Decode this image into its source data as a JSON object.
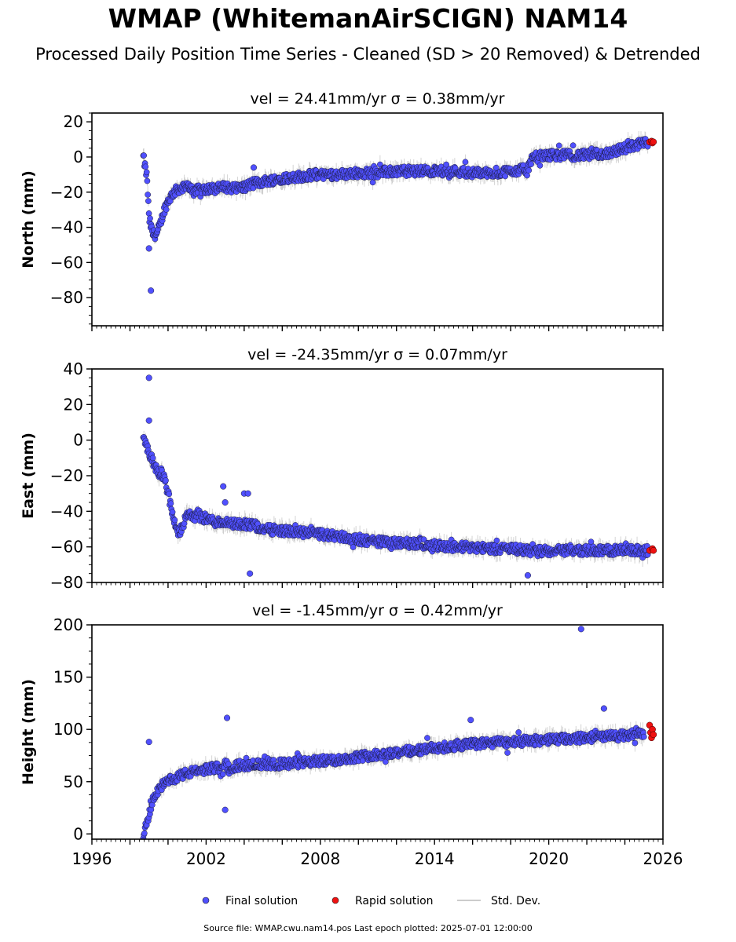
{
  "page": {
    "title": "WMAP (WhitemanAirSCIGN) NAM14",
    "subtitle": "Processed Daily Position Time Series - Cleaned (SD > 20 Removed) & Detrended",
    "footer": "Source file: WMAP.cwu.nam14.pos  Last epoch plotted: 2025-07-01 12:00:00"
  },
  "legend": {
    "final": "Final solution",
    "rapid": "Rapid solution",
    "std": "Std. Dev."
  },
  "colors": {
    "final": "#5050ff",
    "rapid": "#ee1111",
    "std": "#aaaaaa"
  },
  "chart_data": [
    {
      "type": "scatter",
      "title": "vel = 24.41mm/yr   σ = 0.38mm/yr",
      "ylabel": "North (mm)",
      "xlim": [
        1996,
        2026
      ],
      "ylim": [
        -96,
        25
      ],
      "yticks": [
        20,
        0,
        -20,
        -40,
        -60,
        -80
      ],
      "xticks": [],
      "outliers": [
        [
          1999.1,
          -76
        ],
        [
          1999.0,
          -52
        ],
        [
          2004.5,
          -6
        ]
      ],
      "rapid": [
        [
          2025.3,
          8.5
        ],
        [
          2025.4,
          9
        ],
        [
          2025.45,
          8
        ],
        [
          2025.5,
          8.6
        ]
      ],
      "series": [
        {
          "x": [
            1998.7,
            1998.9,
            1999.0,
            1999.2,
            1999.4,
            1999.6,
            1999.8,
            2000.0,
            2000.3,
            2000.6,
            2001.0,
            2001.5,
            2002.0,
            2002.5,
            2003.0,
            2003.5,
            2004.0,
            2004.5,
            2005.0,
            2005.5,
            2006.0,
            2007.0,
            2008.0,
            2009.0,
            2010.0,
            2011.0,
            2012.0,
            2013.0,
            2014.0,
            2015.0,
            2016.0,
            2017.0,
            2018.0,
            2018.9,
            2019.0,
            2019.3,
            2020.0,
            2021.0,
            2022.0,
            2023.0,
            2024.0,
            2024.6,
            2025.2
          ],
          "y": [
            0,
            -12,
            -35,
            -44,
            -44,
            -38,
            -30,
            -25,
            -20,
            -18,
            -17,
            -19,
            -18,
            -18,
            -17,
            -18,
            -17,
            -15,
            -14,
            -13,
            -12,
            -11,
            -10,
            -10,
            -9,
            -9,
            -8,
            -8,
            -8,
            -8,
            -9,
            -9,
            -8,
            -7,
            -3,
            0,
            1,
            1,
            1,
            2,
            5,
            7,
            8
          ]
        }
      ]
    },
    {
      "type": "scatter",
      "title": "vel = -24.35mm/yr   σ = 0.07mm/yr",
      "ylabel": "East (mm)",
      "xlim": [
        1996,
        2026
      ],
      "ylim": [
        -80,
        40
      ],
      "yticks": [
        40,
        20,
        0,
        -20,
        -40,
        -60,
        -80
      ],
      "xticks": [],
      "outliers": [
        [
          1999.0,
          35
        ],
        [
          1999.0,
          11
        ],
        [
          2002.9,
          -26
        ],
        [
          2003.0,
          -35
        ],
        [
          2004.0,
          -30
        ],
        [
          2004.2,
          -30
        ],
        [
          2004.3,
          -75
        ],
        [
          2018.9,
          -76
        ]
      ],
      "rapid": [
        [
          2025.3,
          -62
        ],
        [
          2025.45,
          -61
        ],
        [
          2025.5,
          -62
        ]
      ],
      "series": [
        {
          "x": [
            1998.7,
            1998.9,
            1999.1,
            1999.3,
            1999.5,
            1999.8,
            2000.0,
            2000.2,
            2000.4,
            2000.6,
            2001.0,
            2001.5,
            2002.0,
            2002.5,
            2003.0,
            2003.5,
            2004.0,
            2004.5,
            2005.0,
            2006.0,
            2007.0,
            2008.0,
            2009.0,
            2010.0,
            2011.0,
            2012.0,
            2013.0,
            2014.0,
            2015.0,
            2016.0,
            2017.0,
            2018.0,
            2018.9,
            2019.2,
            2020.0,
            2021.0,
            2022.0,
            2023.0,
            2024.0,
            2025.2
          ],
          "y": [
            0,
            -5,
            -10,
            -15,
            -18,
            -20,
            -30,
            -40,
            -50,
            -52,
            -42,
            -43,
            -44,
            -46,
            -46,
            -47,
            -47,
            -48,
            -50,
            -51,
            -52,
            -53,
            -54,
            -56,
            -57,
            -58,
            -58,
            -59,
            -60,
            -60,
            -61,
            -61,
            -62,
            -63,
            -62,
            -62,
            -62,
            -62,
            -62,
            -62
          ]
        }
      ]
    },
    {
      "type": "scatter",
      "title": "vel = -1.45mm/yr   σ = 0.42mm/yr",
      "ylabel": "Height (mm)",
      "xlim": [
        1996,
        2026
      ],
      "ylim": [
        -5,
        200
      ],
      "yticks": [
        200,
        150,
        100,
        50,
        0
      ],
      "xticks": [
        1996,
        2002,
        2008,
        2014,
        2020,
        2026
      ],
      "outliers": [
        [
          2021.7,
          196
        ],
        [
          1999.0,
          88
        ],
        [
          2003.1,
          111
        ],
        [
          2015.9,
          109
        ],
        [
          2022.9,
          120
        ],
        [
          2003.0,
          23
        ]
      ],
      "rapid": [
        [
          2025.3,
          104
        ],
        [
          2025.35,
          97
        ],
        [
          2025.4,
          92
        ],
        [
          2025.45,
          100
        ],
        [
          2025.5,
          95
        ]
      ],
      "series": [
        {
          "x": [
            1998.7,
            1998.9,
            1999.1,
            1999.3,
            1999.6,
            2000.0,
            2000.5,
            2001.0,
            2001.5,
            2002.0,
            2002.5,
            2003.0,
            2003.5,
            2004.0,
            2004.5,
            2005.0,
            2006.0,
            2007.0,
            2008.0,
            2009.0,
            2010.0,
            2011.0,
            2012.0,
            2013.0,
            2014.0,
            2015.0,
            2016.0,
            2017.0,
            2018.0,
            2019.0,
            2020.0,
            2021.0,
            2022.0,
            2023.0,
            2024.0,
            2025.0
          ],
          "y": [
            0,
            10,
            25,
            38,
            45,
            50,
            55,
            58,
            60,
            62,
            63,
            64,
            65,
            66,
            67,
            66,
            67,
            68,
            70,
            71,
            74,
            76,
            78,
            80,
            82,
            84,
            86,
            87,
            88,
            89,
            90,
            91,
            92,
            93,
            94,
            96
          ]
        }
      ]
    }
  ]
}
